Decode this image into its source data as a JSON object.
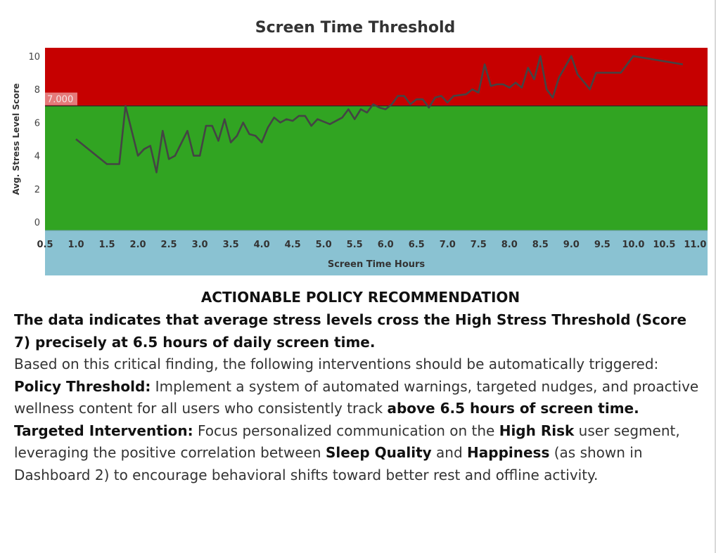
{
  "chart_data": {
    "type": "line",
    "title": "Screen Time Threshold",
    "xlabel": "Screen Time Hours",
    "ylabel": "Avg. Stress Level Score",
    "xlim": [
      0.5,
      11.2
    ],
    "ylim": [
      -0.5,
      10.5
    ],
    "x_ticks": [
      "0.5",
      "1.0",
      "1.5",
      "2.0",
      "2.5",
      "3.0",
      "3.5",
      "4.0",
      "4.5",
      "5.0",
      "5.5",
      "6.0",
      "6.5",
      "7.0",
      "7.5",
      "8.0",
      "8.5",
      "9.0",
      "9.5",
      "10.0",
      "10.5",
      "11.0"
    ],
    "y_ticks": [
      "0",
      "2",
      "4",
      "6",
      "8",
      "10"
    ],
    "reference_line": {
      "value": 7,
      "label": "7.000"
    },
    "bands": [
      {
        "name": "high",
        "from": 7,
        "to": 10.5,
        "color": "#c60000"
      },
      {
        "name": "low",
        "from": -0.5,
        "to": 7,
        "color": "#31a422"
      }
    ],
    "grid": false,
    "line_color": "#444444",
    "points": [
      [
        1.0,
        5.0
      ],
      [
        1.5,
        3.5
      ],
      [
        1.7,
        3.5
      ],
      [
        1.8,
        7.0
      ],
      [
        2.0,
        4.0
      ],
      [
        2.1,
        4.4
      ],
      [
        2.2,
        4.6
      ],
      [
        2.3,
        3.0
      ],
      [
        2.4,
        5.5
      ],
      [
        2.5,
        3.8
      ],
      [
        2.6,
        4.0
      ],
      [
        2.8,
        5.5
      ],
      [
        2.9,
        4.0
      ],
      [
        3.0,
        4.0
      ],
      [
        3.1,
        5.8
      ],
      [
        3.2,
        5.8
      ],
      [
        3.3,
        4.9
      ],
      [
        3.4,
        6.2
      ],
      [
        3.5,
        4.8
      ],
      [
        3.6,
        5.2
      ],
      [
        3.7,
        6.0
      ],
      [
        3.8,
        5.3
      ],
      [
        3.9,
        5.2
      ],
      [
        4.0,
        4.8
      ],
      [
        4.1,
        5.7
      ],
      [
        4.2,
        6.3
      ],
      [
        4.3,
        6.0
      ],
      [
        4.4,
        6.2
      ],
      [
        4.5,
        6.1
      ],
      [
        4.6,
        6.4
      ],
      [
        4.7,
        6.4
      ],
      [
        4.8,
        5.8
      ],
      [
        4.9,
        6.2
      ],
      [
        5.1,
        5.9
      ],
      [
        5.3,
        6.3
      ],
      [
        5.4,
        6.8
      ],
      [
        5.5,
        6.2
      ],
      [
        5.6,
        6.8
      ],
      [
        5.7,
        6.6
      ],
      [
        5.8,
        7.1
      ],
      [
        5.9,
        6.9
      ],
      [
        6.0,
        6.8
      ],
      [
        6.1,
        7.1
      ],
      [
        6.2,
        7.6
      ],
      [
        6.3,
        7.6
      ],
      [
        6.4,
        7.1
      ],
      [
        6.5,
        7.4
      ],
      [
        6.6,
        7.4
      ],
      [
        6.7,
        6.9
      ],
      [
        6.8,
        7.5
      ],
      [
        6.9,
        7.6
      ],
      [
        7.0,
        7.2
      ],
      [
        7.1,
        7.6
      ],
      [
        7.3,
        7.7
      ],
      [
        7.4,
        8.0
      ],
      [
        7.5,
        7.8
      ],
      [
        7.6,
        9.5
      ],
      [
        7.7,
        8.2
      ],
      [
        7.8,
        8.3
      ],
      [
        7.9,
        8.3
      ],
      [
        8.0,
        8.1
      ],
      [
        8.1,
        8.4
      ],
      [
        8.2,
        8.1
      ],
      [
        8.3,
        9.3
      ],
      [
        8.4,
        8.6
      ],
      [
        8.5,
        10.0
      ],
      [
        8.6,
        8.0
      ],
      [
        8.7,
        7.5
      ],
      [
        8.8,
        8.7
      ],
      [
        9.0,
        10.0
      ],
      [
        9.1,
        8.9
      ],
      [
        9.3,
        8.0
      ],
      [
        9.4,
        9.0
      ],
      [
        9.8,
        9.0
      ],
      [
        10.0,
        10.0
      ],
      [
        10.8,
        9.5
      ]
    ]
  },
  "policy": {
    "heading": "ACTIONABLE POLICY RECOMMENDATION",
    "lead": "The data indicates that average stress levels cross the High Stress Threshold (Score 7) precisely at 6.5 hours of daily screen time.",
    "intro": "Based on this critical finding, the following interventions should be automatically triggered:",
    "threshold": {
      "label": "Policy Threshold:",
      "text": " Implement a system of automated warnings, targeted nudges, and proactive wellness content for all users who consistently track ",
      "emphasis": "above 6.5 hours of screen time."
    },
    "intervention": {
      "label": "Targeted Intervention:",
      "text1": " Focus personalized communication on the ",
      "em1": "High Risk",
      "text2": " user segment, leveraging the positive correlation between ",
      "em2": "Sleep Quality",
      "text3": " and ",
      "em3": "Happiness",
      "text4": " (as shown in Dashboard 2) to encourage behavioral shifts toward better rest and offline activity."
    }
  }
}
